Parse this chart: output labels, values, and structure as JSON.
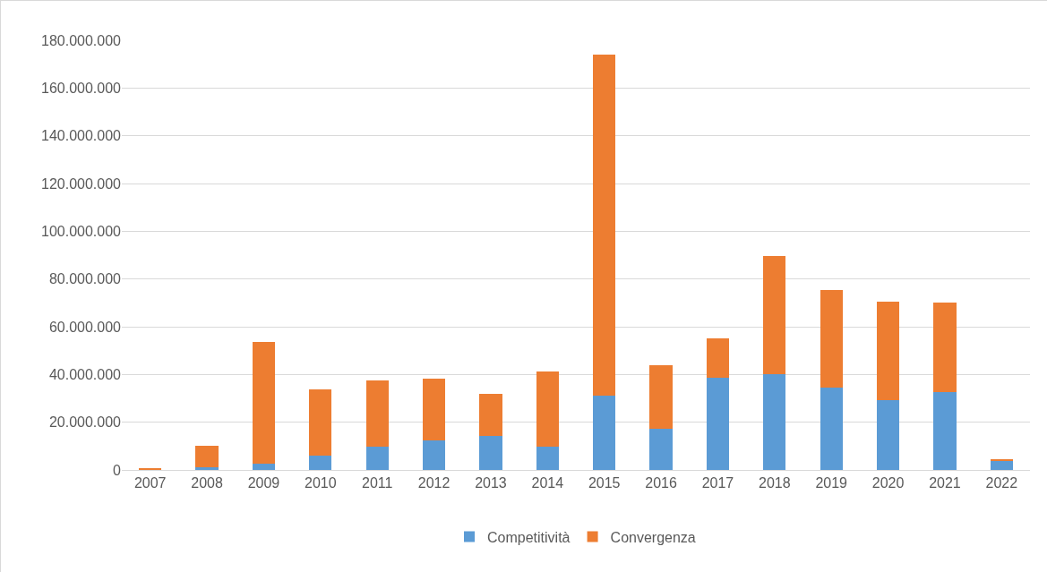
{
  "chart_data": {
    "type": "bar",
    "stacked": true,
    "categories": [
      "2007",
      "2008",
      "2009",
      "2010",
      "2011",
      "2012",
      "2013",
      "2014",
      "2015",
      "2016",
      "2017",
      "2018",
      "2019",
      "2020",
      "2021",
      "2022"
    ],
    "series": [
      {
        "name": "Competitività",
        "color": "#5b9bd5",
        "values": [
          0,
          1000000,
          2600000,
          6000000,
          9800000,
          12400000,
          14300000,
          9700000,
          31200000,
          17200000,
          38600000,
          40000000,
          34600000,
          29400000,
          32600000,
          4100000
        ]
      },
      {
        "name": "Convergenza",
        "color": "#ed7d31",
        "values": [
          500000,
          9200000,
          51000000,
          27900000,
          27600000,
          25900000,
          17400000,
          31500000,
          142700000,
          26500000,
          16500000,
          49500000,
          40700000,
          41000000,
          37700000,
          200000
        ]
      }
    ],
    "ylim": [
      0,
      180000000
    ],
    "yticks": [
      {
        "value": 0,
        "label": "0"
      },
      {
        "value": 20000000,
        "label": "20.000.000"
      },
      {
        "value": 40000000,
        "label": "40.000.000"
      },
      {
        "value": 60000000,
        "label": "60.000.000"
      },
      {
        "value": 80000000,
        "label": "80.000.000"
      },
      {
        "value": 100000000,
        "label": "100.000.000"
      },
      {
        "value": 120000000,
        "label": "120.000.000"
      },
      {
        "value": 140000000,
        "label": "140.000.000"
      },
      {
        "value": 160000000,
        "label": "160.000.000"
      },
      {
        "value": 180000000,
        "label": "180.000.000"
      }
    ],
    "grid": "y",
    "legend": "bottom"
  }
}
